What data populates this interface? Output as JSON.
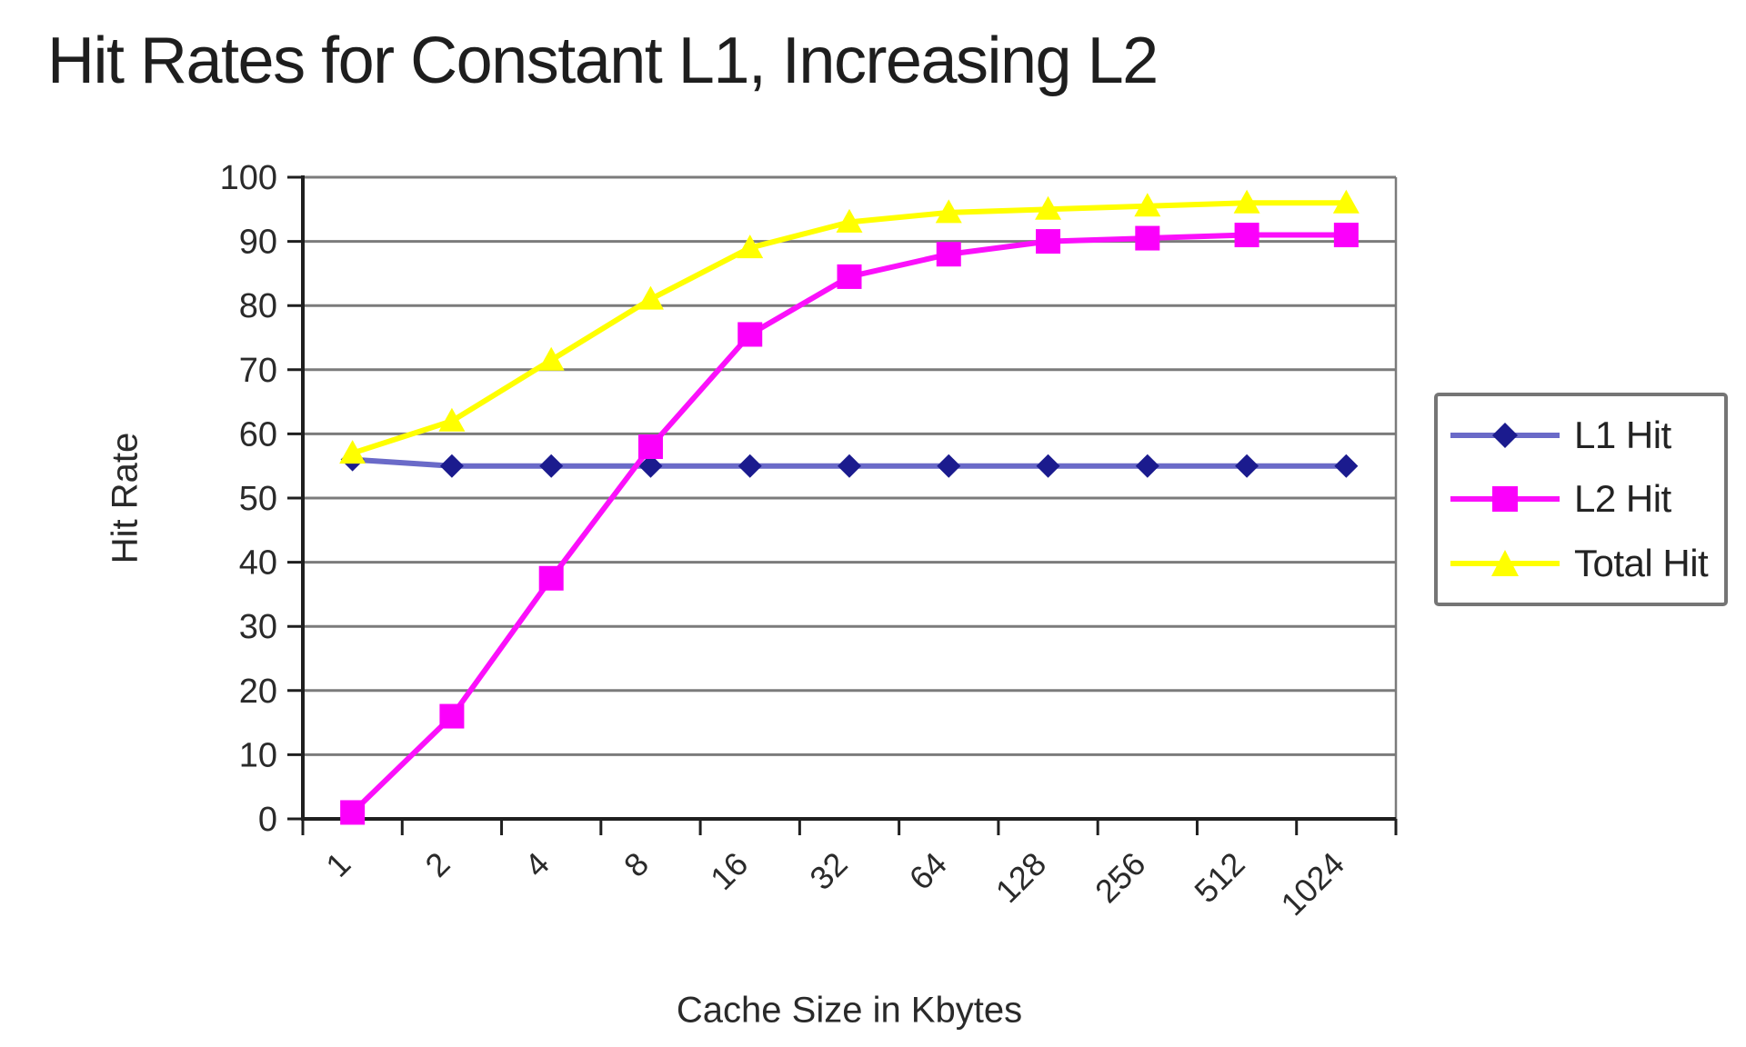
{
  "chart_data": {
    "type": "line",
    "title": "Hit Rates for Constant L1, Increasing L2",
    "xlabel": "Cache Size in Kbytes",
    "ylabel": "Hit Rate",
    "categories": [
      "1",
      "2",
      "4",
      "8",
      "16",
      "32",
      "64",
      "128",
      "256",
      "512",
      "1024"
    ],
    "yticks": [
      0,
      10,
      20,
      30,
      40,
      50,
      60,
      70,
      80,
      90,
      100
    ],
    "ylim": [
      0,
      100
    ],
    "grid": "horizontal",
    "legend_position": "right",
    "series": [
      {
        "name": "L1 Hit",
        "marker": "diamond",
        "line_color": "#6a6ac8",
        "marker_color": "#1b1b8e",
        "values": [
          56,
          55,
          55,
          55,
          55,
          55,
          55,
          55,
          55,
          55,
          55
        ]
      },
      {
        "name": "L2 Hit",
        "marker": "square",
        "line_color": "#fb10fb",
        "marker_color": "#fb00fb",
        "values": [
          1,
          16,
          37.5,
          58,
          75.5,
          84.5,
          88,
          90,
          90.5,
          91,
          91
        ]
      },
      {
        "name": "Total Hit",
        "marker": "triangle",
        "line_color": "#ffff00",
        "marker_color": "#ffff00",
        "values": [
          57,
          62,
          71.5,
          81,
          89,
          93,
          94.5,
          95,
          95.5,
          96,
          96
        ]
      }
    ]
  },
  "colors": {
    "background": "#ffffff",
    "grid": "#7b7b7b",
    "axis": "#1f1f1f",
    "tick_text": "#2a2a2a",
    "title_text": "#1e1e1e",
    "legend_border": "#757575"
  }
}
